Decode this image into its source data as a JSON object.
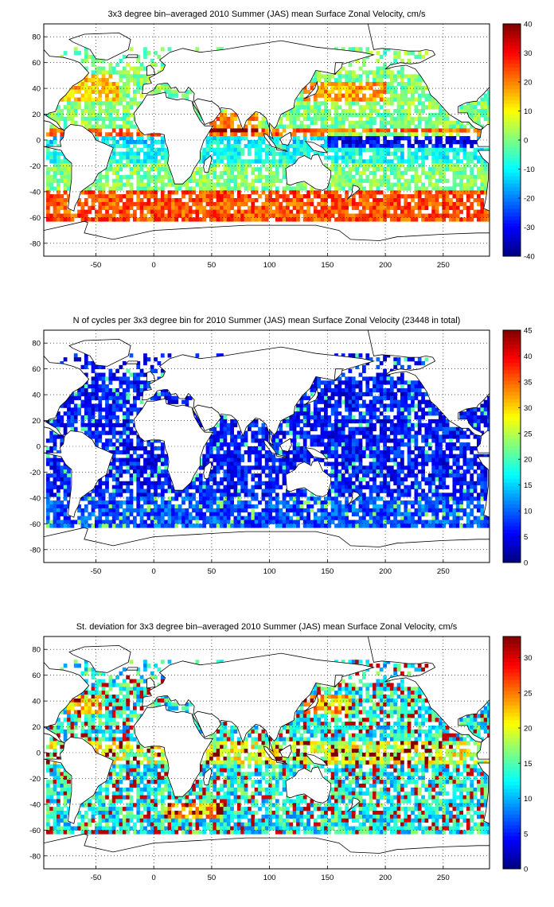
{
  "chart_data": [
    {
      "type": "heatmap",
      "title": "3x3 degree bin–averaged 2010 Summer (JAS) mean Surface Zonal Velocity, cm/s",
      "xlim": [
        -95,
        290
      ],
      "ylim": [
        -90,
        90
      ],
      "xticks": [
        -50,
        0,
        50,
        100,
        150,
        200,
        250
      ],
      "yticks": [
        80,
        60,
        40,
        20,
        0,
        -20,
        -40,
        -60,
        -80
      ],
      "grid": "dotted",
      "colorbar": {
        "min": -40,
        "max": 40,
        "ticks": [
          40,
          30,
          20,
          10,
          0,
          -10,
          -20,
          -30,
          -40
        ],
        "colormap": "jet"
      },
      "bin_size_deg": 3,
      "coverage_lat": [
        -63,
        72
      ],
      "field": "zonal-velocity"
    },
    {
      "type": "heatmap",
      "title": "N of cycles per 3x3 degree bin for 2010 Summer (JAS) mean Surface Zonal Velocity (23448 in total)",
      "xlim": [
        -95,
        290
      ],
      "ylim": [
        -90,
        90
      ],
      "xticks": [
        -50,
        0,
        50,
        100,
        150,
        200,
        250
      ],
      "yticks": [
        80,
        60,
        40,
        20,
        0,
        -20,
        -40,
        -60,
        -80
      ],
      "grid": "dotted",
      "colorbar": {
        "min": 0,
        "max": 45,
        "ticks": [
          45,
          40,
          35,
          30,
          25,
          20,
          15,
          10,
          5,
          0
        ],
        "colormap": "jet"
      },
      "bin_size_deg": 3,
      "coverage_lat": [
        -63,
        72
      ],
      "field": "cycle-count"
    },
    {
      "type": "heatmap",
      "title": "St. deviation for 3x3 degree bin–averaged 2010 Summer (JAS) mean Surface Zonal Velocity, cm/s",
      "xlim": [
        -95,
        290
      ],
      "ylim": [
        -90,
        90
      ],
      "xticks": [
        -50,
        0,
        50,
        100,
        150,
        200,
        250
      ],
      "yticks": [
        80,
        60,
        40,
        20,
        0,
        -20,
        -40,
        -60,
        -80
      ],
      "grid": "dotted",
      "colorbar": {
        "min": 0,
        "max": 33,
        "ticks": [
          30,
          25,
          20,
          15,
          10,
          5,
          0
        ],
        "colormap": "jet"
      },
      "bin_size_deg": 3,
      "coverage_lat": [
        -63,
        72
      ],
      "field": "std-deviation"
    }
  ]
}
